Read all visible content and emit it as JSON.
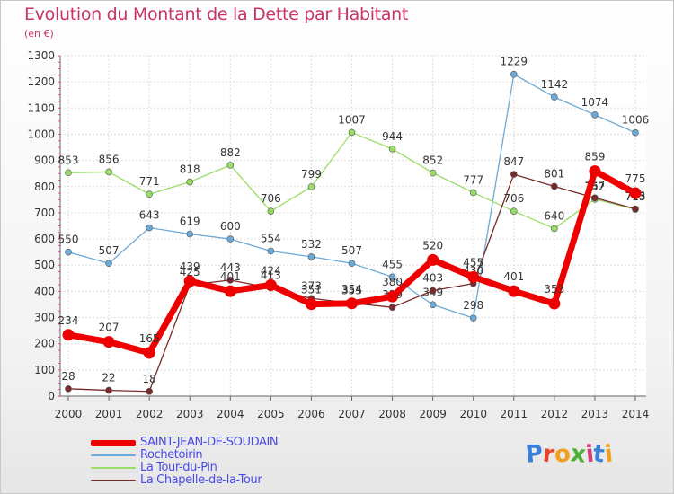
{
  "header": {
    "title": "Evolution du Montant de la Dette par Habitant",
    "subtitle": "(en €)"
  },
  "logo": {
    "text": "Proxiti",
    "letter_colors": [
      "#3a7fd8",
      "#e8442a",
      "#f0a020",
      "#4caf3a",
      "#d83a7a",
      "#3a7fd8",
      "#f0a020"
    ]
  },
  "chart_data": {
    "type": "line",
    "title": "Evolution du Montant de la Dette par Habitant",
    "subtitle": "(en €)",
    "xlabel": "",
    "ylabel": "",
    "ylim": [
      0,
      1300
    ],
    "grid": true,
    "legend_position": "bottom-left",
    "x": [
      "2000",
      "2001",
      "2002",
      "2003",
      "2004",
      "2005",
      "2006",
      "2007",
      "2008",
      "2009",
      "2010",
      "2011",
      "2012",
      "2013",
      "2014"
    ],
    "yticks": [
      "0",
      "100",
      "200",
      "300",
      "400",
      "500",
      "600",
      "700",
      "800",
      "900",
      "1000",
      "1100",
      "1200",
      "1300"
    ],
    "series": [
      {
        "name": "SAINT-JEAN-DE-SOUDAIN",
        "color": "#ee0000",
        "values": [
          234,
          207,
          165,
          439,
          401,
          424,
          351,
          354,
          380,
          520,
          455,
          401,
          353,
          859,
          775
        ]
      },
      {
        "name": "Rochetoirin",
        "color": "#6aaad8",
        "values": [
          550,
          507,
          643,
          619,
          600,
          554,
          532,
          507,
          455,
          349,
          298,
          1229,
          1142,
          1074,
          1006
        ]
      },
      {
        "name": "La Tour-du-Pin",
        "color": "#99dd66",
        "values": [
          853,
          856,
          771,
          818,
          882,
          706,
          799,
          1007,
          944,
          852,
          777,
          706,
          640,
          752,
          713
        ]
      },
      {
        "name": "La Chapelle-de-la-Tour",
        "color": "#7a2a2a",
        "values": [
          28,
          22,
          18,
          425,
          443,
          413,
          373,
          355,
          339,
          403,
          430,
          847,
          801,
          757,
          715
        ]
      }
    ]
  }
}
